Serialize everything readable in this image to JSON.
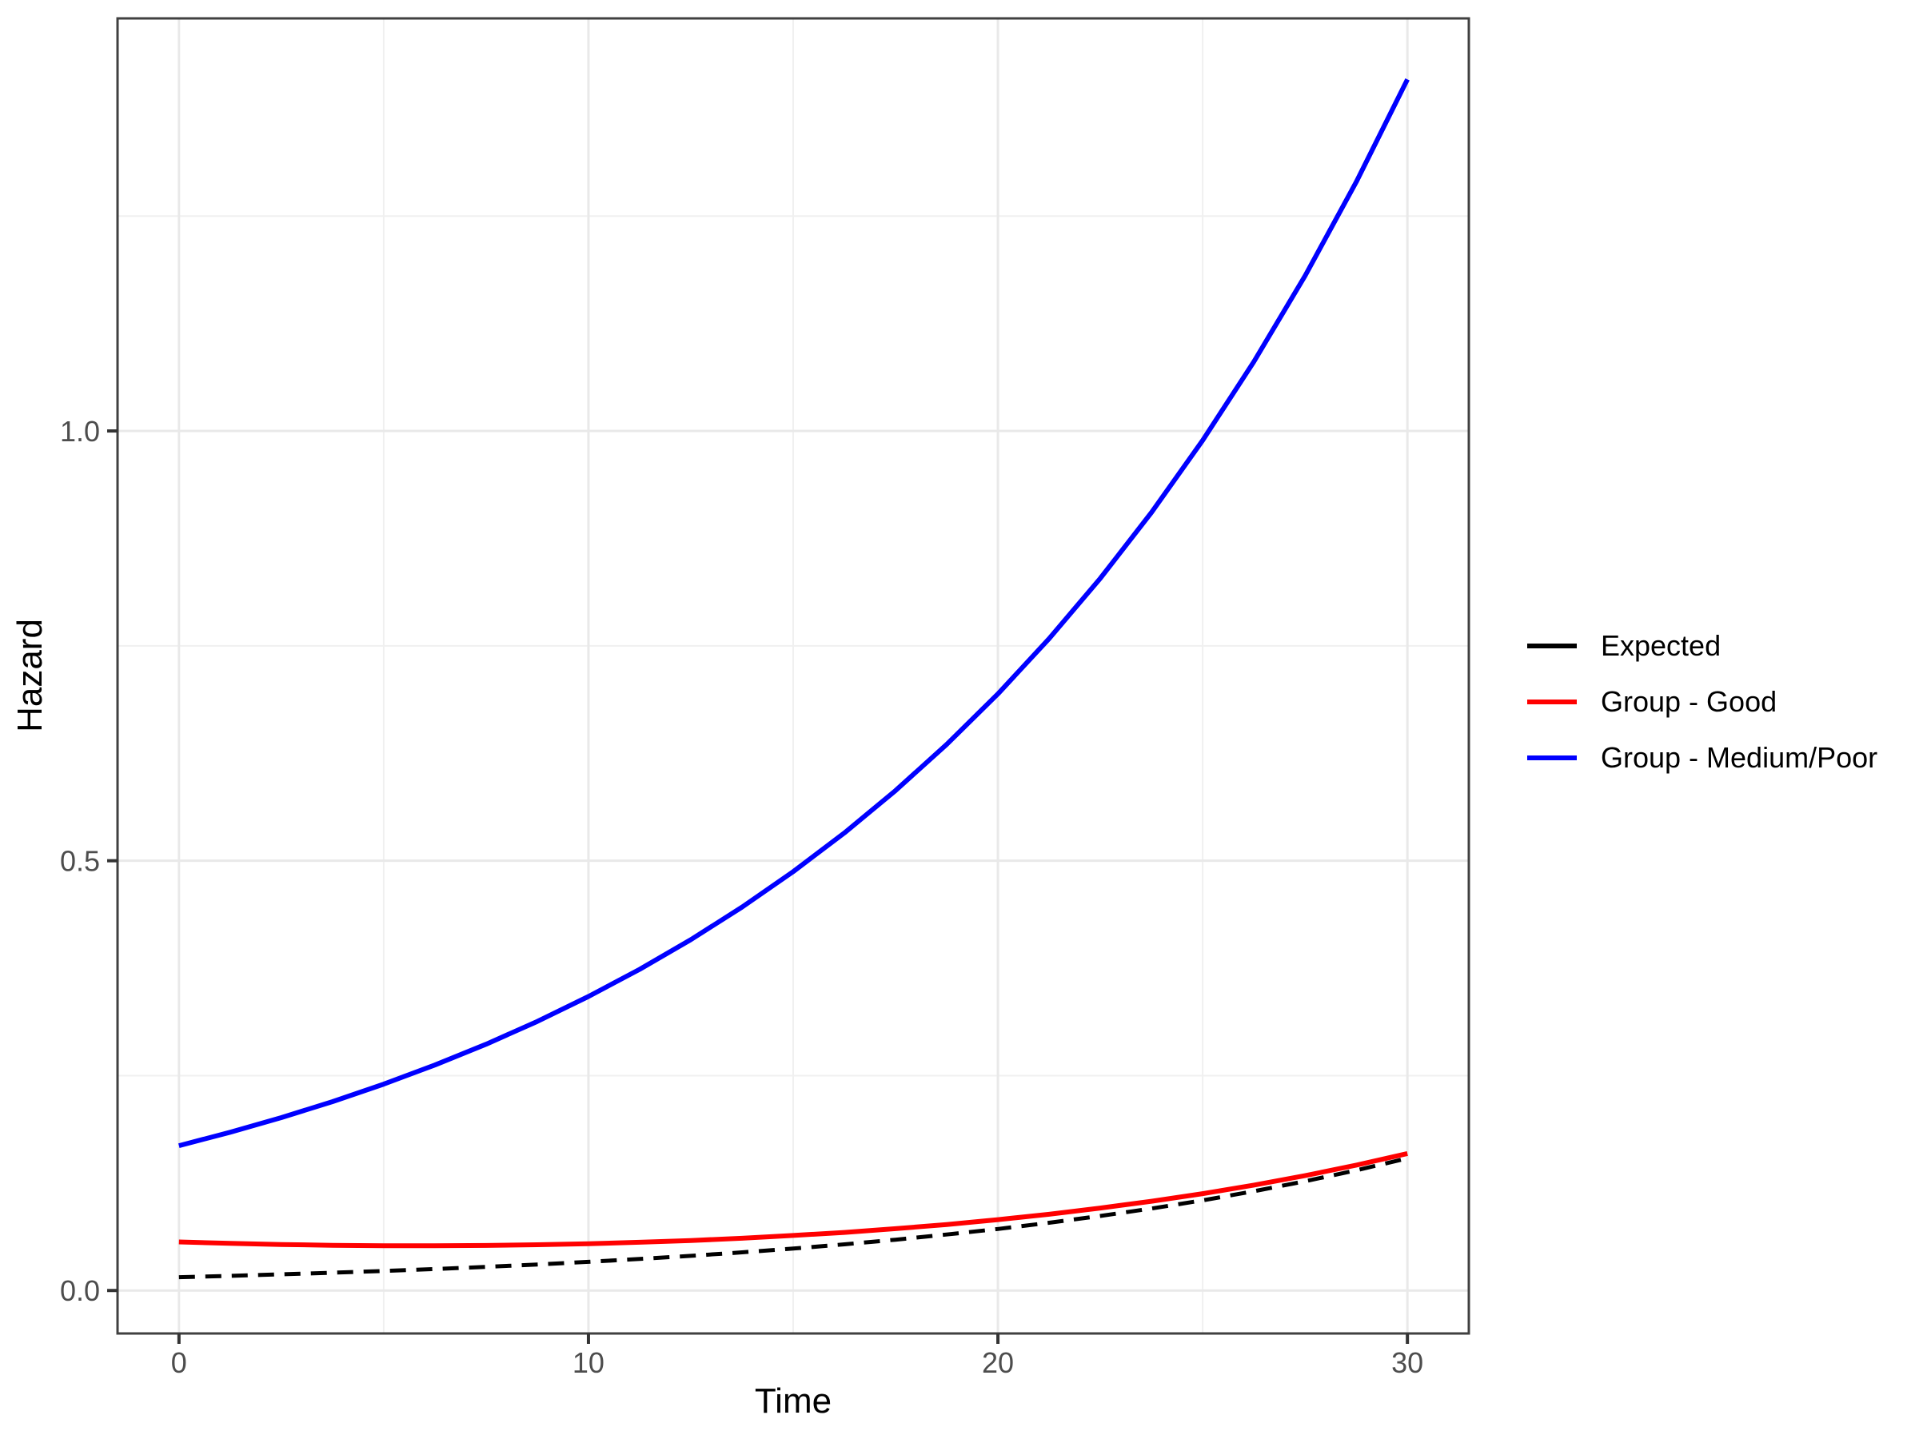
{
  "chart_data": {
    "type": "line",
    "title": "",
    "xlabel": "Time",
    "ylabel": "Hazard",
    "xlim": [
      -1.5,
      31.5
    ],
    "ylim": [
      -0.05,
      1.48
    ],
    "grid": true,
    "legend_position": "right",
    "x_axis": {
      "tick_values": [
        0,
        10,
        20,
        30
      ],
      "tick_labels": [
        "0",
        "10",
        "20",
        "30"
      ],
      "minor_ticks": [
        5,
        15,
        25
      ]
    },
    "y_axis": {
      "tick_values": [
        0,
        0.5,
        1.0
      ],
      "tick_labels": [
        "0.0",
        "0.5",
        "1.0"
      ],
      "minor_ticks": [
        0.25,
        0.75,
        1.25
      ]
    },
    "x": [
      0,
      1.25,
      2.5,
      3.75,
      5,
      6.25,
      7.5,
      8.75,
      10,
      11.25,
      12.5,
      13.75,
      15,
      16.25,
      17.5,
      18.75,
      20,
      21.25,
      22.5,
      23.75,
      25,
      26.25,
      27.5,
      28.75,
      30
    ],
    "series": [
      {
        "name": "Expected",
        "color": "#000000",
        "linetype": "dashed",
        "legend_linetype": "solid",
        "values": [
          0.0155,
          0.0171,
          0.0188,
          0.0207,
          0.0227,
          0.025,
          0.0275,
          0.0303,
          0.0333,
          0.0367,
          0.0403,
          0.0444,
          0.0488,
          0.0537,
          0.0591,
          0.0651,
          0.0716,
          0.0788,
          0.0867,
          0.0954,
          0.1049,
          0.1155,
          0.1271,
          0.1398,
          0.1538
        ]
      },
      {
        "name": "Group - Good",
        "color": "#FF0000",
        "linetype": "solid",
        "legend_linetype": "solid",
        "values": [
          0.0565,
          0.0548,
          0.0535,
          0.0526,
          0.0521,
          0.0521,
          0.0524,
          0.0532,
          0.0544,
          0.0561,
          0.0582,
          0.0608,
          0.064,
          0.0676,
          0.0719,
          0.0768,
          0.0824,
          0.0887,
          0.0959,
          0.1038,
          0.1127,
          0.1226,
          0.1336,
          0.1459,
          0.1594
        ]
      },
      {
        "name": "Group - Medium/Poor",
        "color": "#0000FF",
        "linetype": "solid",
        "legend_linetype": "solid",
        "values": [
          0.1685,
          0.1841,
          0.2011,
          0.2197,
          0.2401,
          0.2623,
          0.2865,
          0.313,
          0.342,
          0.3737,
          0.4082,
          0.446,
          0.4873,
          0.5323,
          0.5816,
          0.6354,
          0.6942,
          0.7584,
          0.8286,
          0.9052,
          0.989,
          1.0805,
          1.1805,
          1.2897,
          1.409
        ]
      }
    ]
  },
  "style": {
    "panel_border_color": "#404040",
    "grid_major_color": "#e9e9e9",
    "grid_minor_color": "#f0f0f0",
    "tick_color": "#333333",
    "tick_label_color": "#4d4d4d",
    "background": "#ffffff"
  }
}
